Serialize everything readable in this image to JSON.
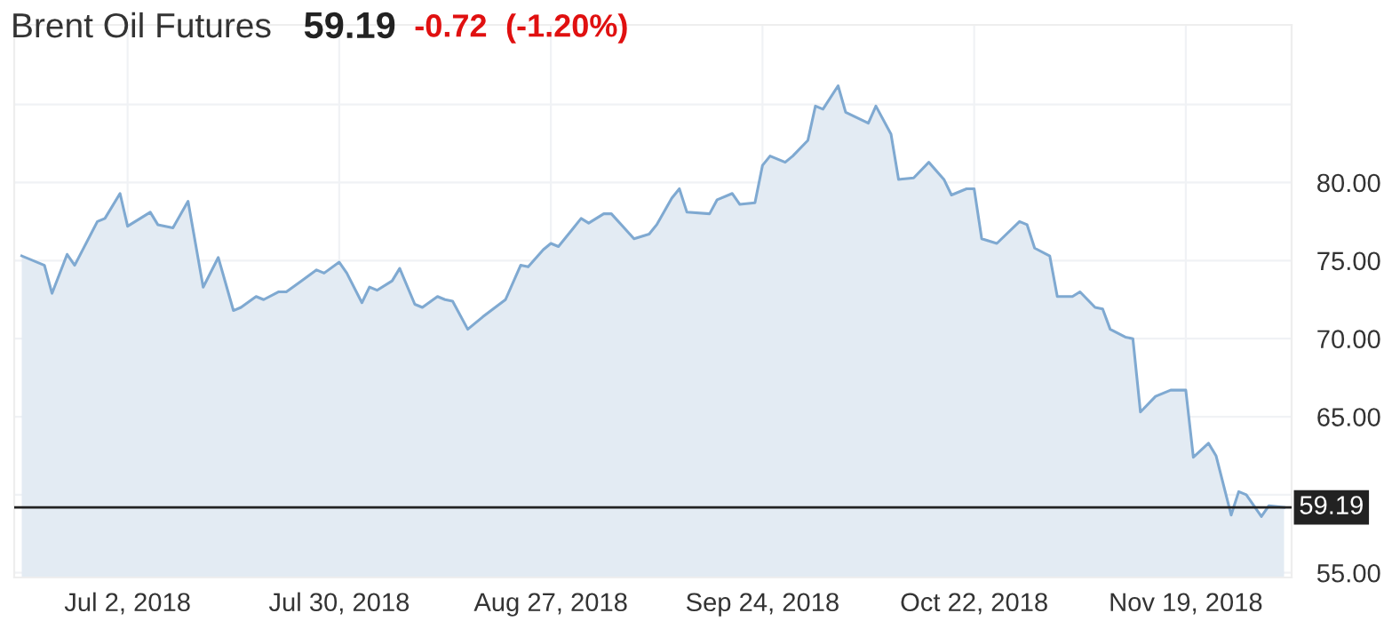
{
  "chart_data": {
    "type": "area",
    "title": "Brent Oil Futures",
    "annotations": [
      "59.19",
      "-0.72",
      "(-1.20%)"
    ],
    "x": [
      "2018-06-18",
      "2018-06-21",
      "2018-06-22",
      "2018-06-24",
      "2018-06-25",
      "2018-06-28",
      "2018-06-29",
      "2018-07-01",
      "2018-07-02",
      "2018-07-05",
      "2018-07-06",
      "2018-07-08",
      "2018-07-10",
      "2018-07-12",
      "2018-07-14",
      "2018-07-16",
      "2018-07-17",
      "2018-07-19",
      "2018-07-20",
      "2018-07-22",
      "2018-07-23",
      "2018-07-25",
      "2018-07-27",
      "2018-07-28",
      "2018-07-30",
      "2018-07-31",
      "2018-08-02",
      "2018-08-03",
      "2018-08-04",
      "2018-08-06",
      "2018-08-07",
      "2018-08-09",
      "2018-08-10",
      "2018-08-12",
      "2018-08-13",
      "2018-08-14",
      "2018-08-16",
      "2018-08-18",
      "2018-08-21",
      "2018-08-23",
      "2018-08-24",
      "2018-08-26",
      "2018-08-27",
      "2018-08-28",
      "2018-08-30",
      "2018-08-31",
      "2018-09-01",
      "2018-09-03",
      "2018-09-04",
      "2018-09-07",
      "2018-09-09",
      "2018-09-10",
      "2018-09-12",
      "2018-09-13",
      "2018-09-14",
      "2018-09-17",
      "2018-09-18",
      "2018-09-20",
      "2018-09-21",
      "2018-09-23",
      "2018-09-24",
      "2018-09-25",
      "2018-09-27",
      "2018-09-28",
      "2018-09-30",
      "2018-10-01",
      "2018-10-02",
      "2018-10-04",
      "2018-10-05",
      "2018-10-08",
      "2018-10-09",
      "2018-10-11",
      "2018-10-12",
      "2018-10-14",
      "2018-10-16",
      "2018-10-18",
      "2018-10-19",
      "2018-10-21",
      "2018-10-22",
      "2018-10-23",
      "2018-10-25",
      "2018-10-28",
      "2018-10-29",
      "2018-10-30",
      "2018-11-01",
      "2018-11-02",
      "2018-11-04",
      "2018-11-05",
      "2018-11-07",
      "2018-11-08",
      "2018-11-09",
      "2018-11-11",
      "2018-11-12",
      "2018-11-13",
      "2018-11-15",
      "2018-11-17",
      "2018-11-19",
      "2018-11-20",
      "2018-11-22",
      "2018-11-23",
      "2018-11-25",
      "2018-11-26",
      "2018-11-27",
      "2018-11-29",
      "2018-11-30",
      "2018-12-02"
    ],
    "series": [
      {
        "color": "#7fa9d1",
        "values": [
          75.3,
          74.7,
          72.9,
          75.4,
          74.7,
          77.5,
          77.7,
          79.3,
          77.2,
          78.1,
          77.3,
          77.1,
          78.8,
          73.3,
          75.2,
          71.8,
          72.0,
          72.7,
          72.5,
          73.0,
          73.0,
          73.7,
          74.4,
          74.2,
          74.9,
          74.2,
          72.3,
          73.3,
          73.1,
          73.7,
          74.5,
          72.2,
          72.0,
          72.7,
          72.5,
          72.4,
          70.6,
          71.4,
          72.5,
          74.7,
          74.6,
          75.7,
          76.1,
          75.9,
          77.1,
          77.7,
          77.4,
          78.0,
          78.0,
          76.4,
          76.7,
          77.3,
          79.0,
          79.6,
          78.1,
          78.0,
          78.9,
          79.3,
          78.6,
          78.7,
          81.1,
          81.7,
          81.3,
          81.7,
          82.7,
          84.9,
          84.7,
          86.2,
          84.5,
          83.8,
          84.9,
          83.1,
          80.2,
          80.3,
          81.3,
          80.2,
          79.2,
          79.6,
          79.6,
          76.4,
          76.1,
          77.5,
          77.3,
          75.8,
          75.3,
          72.7,
          72.7,
          73.0,
          72.0,
          71.9,
          70.6,
          70.1,
          70.0,
          65.3,
          66.3,
          66.7,
          66.7,
          62.4,
          63.3,
          62.5,
          58.7,
          60.2,
          60.0,
          58.6,
          59.3,
          59.19
        ]
      }
    ],
    "xlim": [
      "2018-06-17",
      "2018-12-03"
    ],
    "xticks": [
      {
        "value": "2018-07-02",
        "label": "Jul 2, 2018"
      },
      {
        "value": "2018-07-30",
        "label": "Jul 30, 2018"
      },
      {
        "value": "2018-08-27",
        "label": "Aug 27, 2018"
      },
      {
        "value": "2018-09-24",
        "label": "Sep 24, 2018"
      },
      {
        "value": "2018-10-22",
        "label": "Oct 22, 2018"
      },
      {
        "value": "2018-11-19",
        "label": "Nov 19, 2018"
      }
    ],
    "ylim": [
      54.7,
      90.1
    ],
    "yticks": [
      {
        "value": 55,
        "label": "55.00"
      },
      {
        "value": 60,
        "label": null
      },
      {
        "value": 65,
        "label": "65.00"
      },
      {
        "value": 70,
        "label": "70.00"
      },
      {
        "value": 75,
        "label": "75.00"
      },
      {
        "value": 80,
        "label": "80.00"
      },
      {
        "value": 85,
        "label": null
      }
    ],
    "ref_lines": [
      {
        "axis": "y",
        "value": 59.19,
        "label": "59.19",
        "color": "#222222"
      }
    ],
    "grid": true
  }
}
